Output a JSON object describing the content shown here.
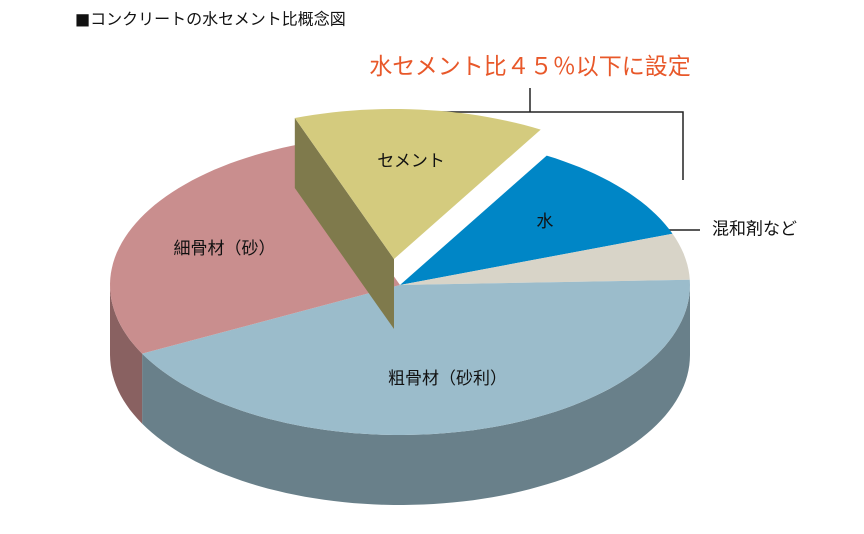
{
  "chart_data": {
    "type": "pie",
    "title": "■コンクリートの水セメント比概念図",
    "annotation": "水セメント比４５％以下に設定",
    "categories": [
      "セメント",
      "水",
      "混和剤など",
      "粗骨材（砂利）",
      "細骨材（砂）"
    ],
    "values": [
      14,
      11,
      5,
      43,
      27
    ],
    "colors": [
      "#d4cb7e",
      "#0086c6",
      "#d8d4c8",
      "#9bbccb",
      "#c98e8e"
    ]
  }
}
